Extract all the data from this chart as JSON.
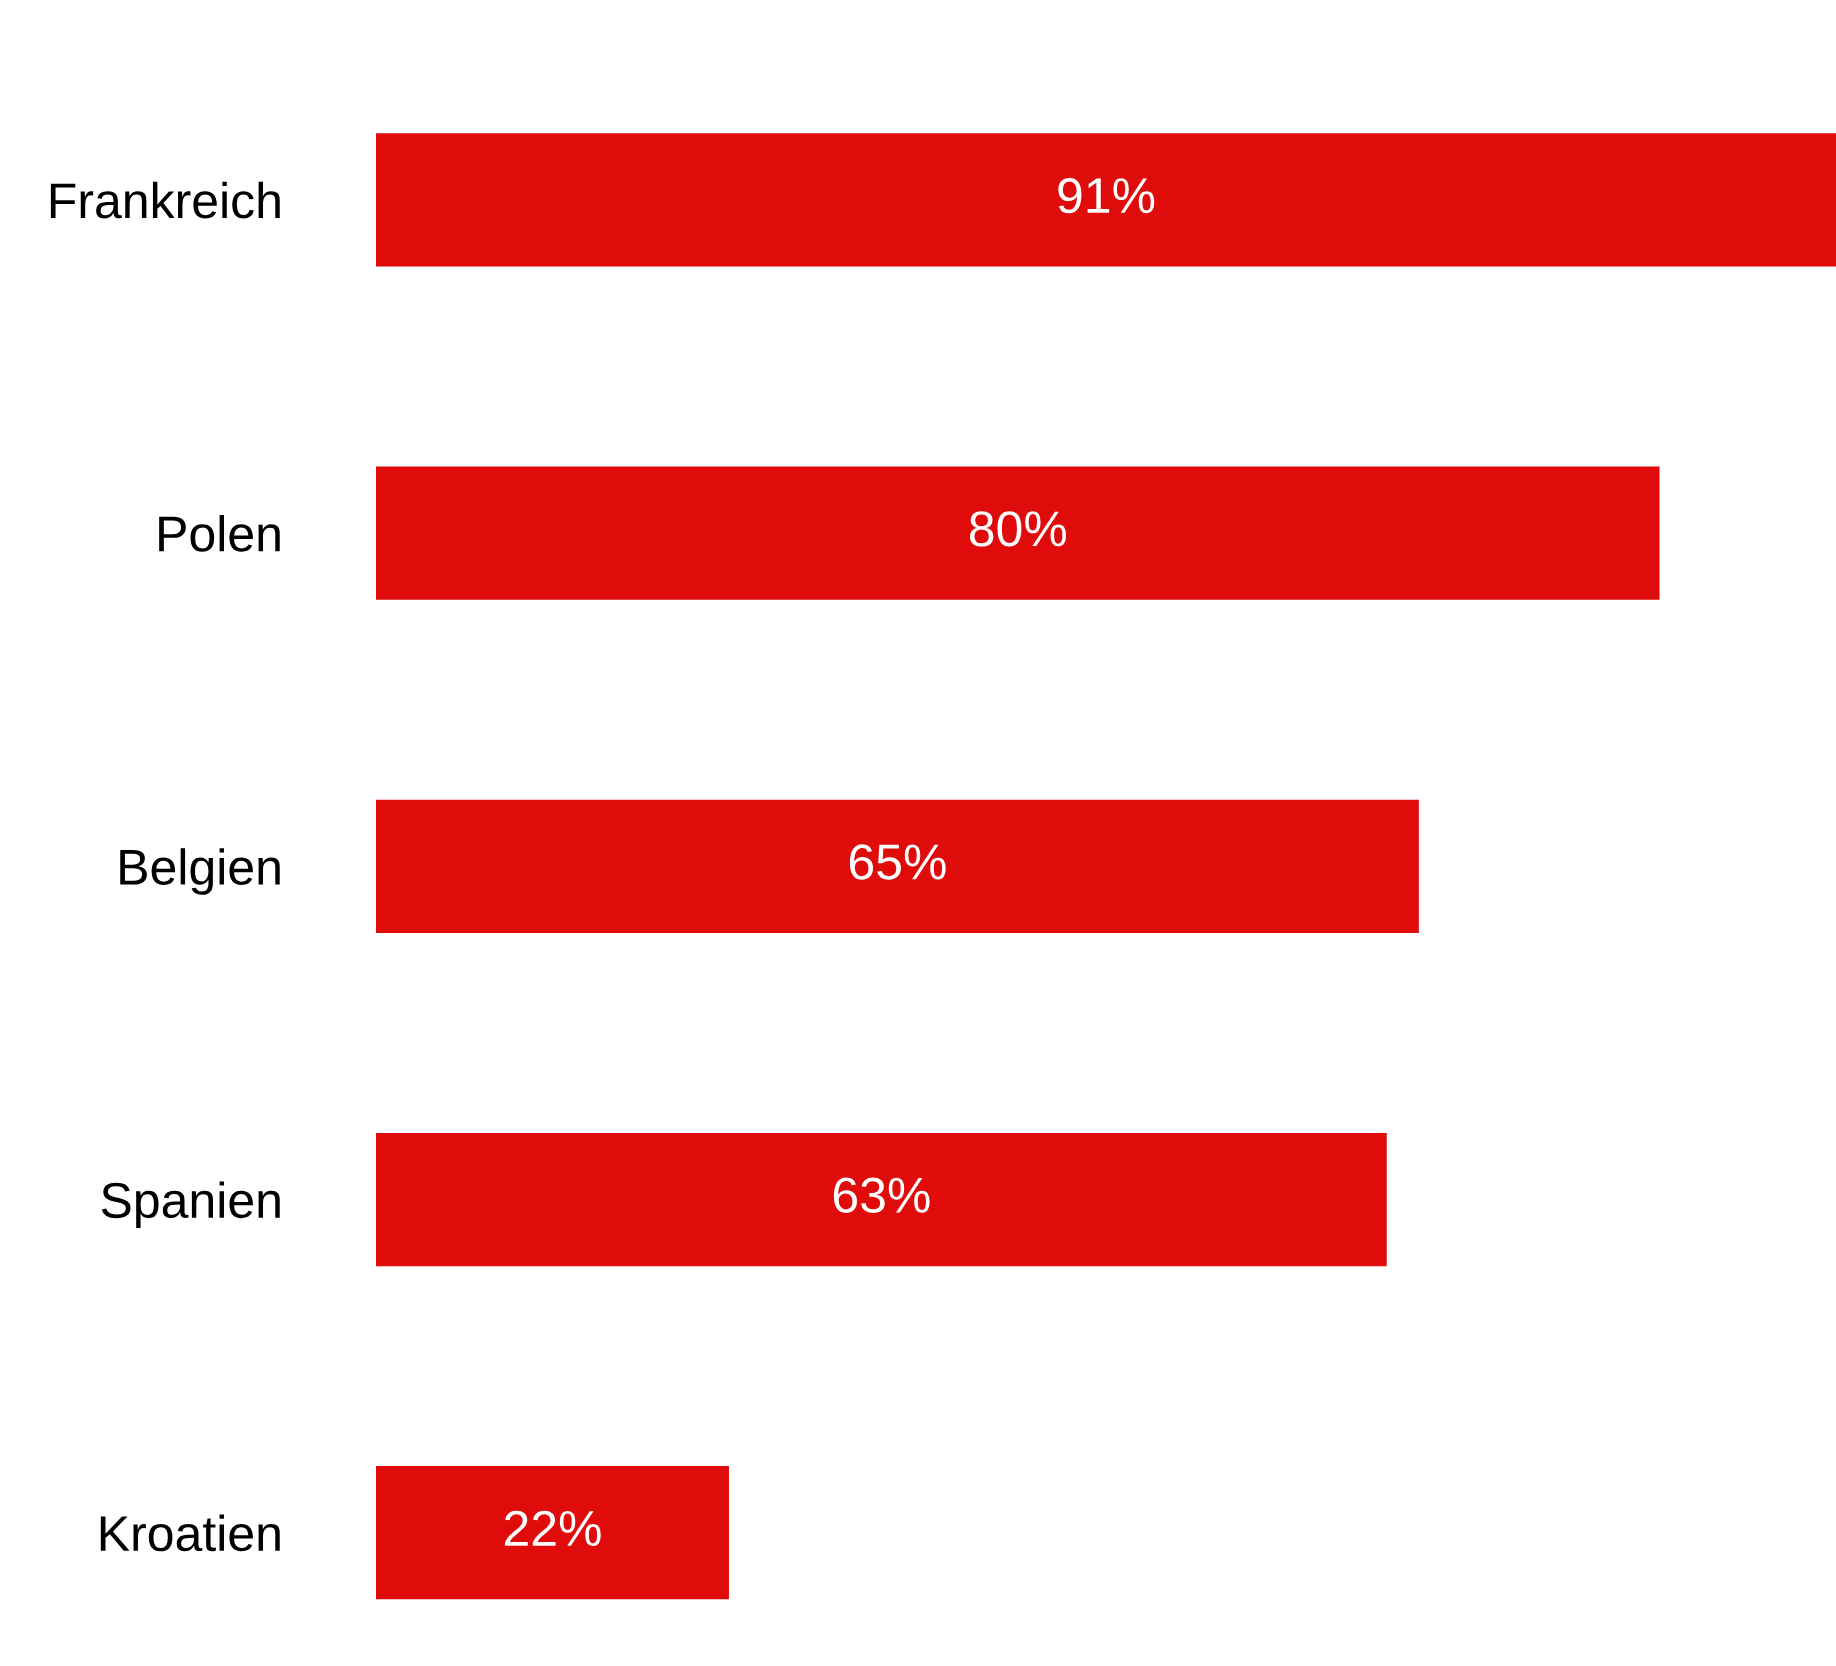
{
  "chart_data": {
    "type": "bar",
    "orientation": "horizontal",
    "categories": [
      "Frankreich",
      "Polen",
      "Belgien",
      "Spanien",
      "Kroatien"
    ],
    "values": [
      91,
      80,
      65,
      63,
      22
    ],
    "value_labels": [
      "91%",
      "80%",
      "65%",
      "63%",
      "22%"
    ],
    "color": "#e00b0b",
    "tick_labels": "y"
  }
}
